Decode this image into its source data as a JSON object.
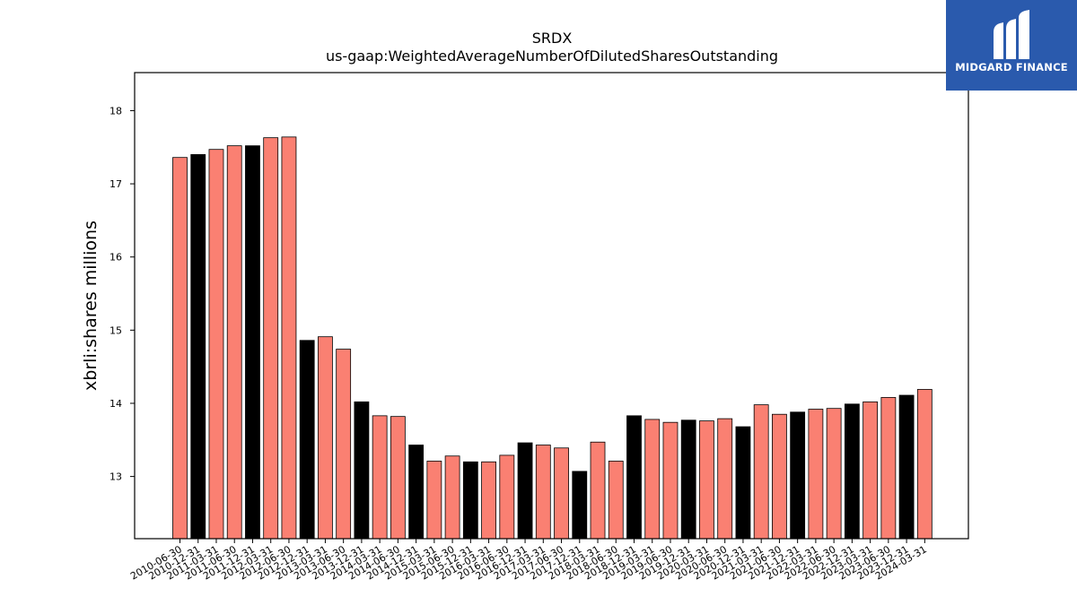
{
  "chart_data": {
    "type": "bar",
    "title": "SRDX",
    "subtitle": "us-gaap:WeightedAverageNumberOfDilutedSharesOutstanding",
    "xlabel": "",
    "ylabel": "xbrli:shares millions",
    "ylim": [
      12.15,
      18.52
    ],
    "yticks": [
      13,
      14,
      15,
      16,
      17,
      18
    ],
    "grid": false,
    "colors": {
      "annual": "#000000",
      "quarterly": "#fa8072",
      "edge": "#000000"
    },
    "categories": [
      "2010-06-30",
      "2010-12-31",
      "2011-03-31",
      "2011-06-30",
      "2011-12-31",
      "2012-03-31",
      "2012-06-30",
      "2012-12-31",
      "2013-03-31",
      "2013-06-30",
      "2013-12-31",
      "2014-03-31",
      "2014-06-30",
      "2014-12-31",
      "2015-03-31",
      "2015-06-30",
      "2015-12-31",
      "2016-03-31",
      "2016-06-30",
      "2016-12-31",
      "2017-03-31",
      "2017-06-30",
      "2017-12-31",
      "2018-03-31",
      "2018-06-30",
      "2018-12-31",
      "2019-03-31",
      "2019-06-30",
      "2019-12-31",
      "2020-03-31",
      "2020-06-30",
      "2020-12-31",
      "2021-03-31",
      "2021-06-30",
      "2021-12-31",
      "2022-03-31",
      "2022-06-30",
      "2022-12-31",
      "2023-03-31",
      "2023-06-30",
      "2023-12-31",
      "2024-03-31"
    ],
    "values": [
      17.36,
      17.4,
      17.47,
      17.52,
      17.52,
      17.63,
      17.64,
      14.86,
      14.91,
      14.74,
      14.02,
      13.83,
      13.82,
      13.43,
      13.21,
      13.28,
      13.2,
      13.2,
      13.29,
      13.46,
      13.43,
      13.39,
      13.07,
      13.47,
      13.21,
      13.83,
      13.78,
      13.74,
      13.77,
      13.76,
      13.79,
      13.68,
      13.98,
      13.85,
      13.88,
      13.92,
      13.93,
      13.99,
      14.02,
      14.08,
      14.11,
      14.19
    ],
    "bar_colors": [
      "salmon",
      "black",
      "salmon",
      "salmon",
      "black",
      "salmon",
      "salmon",
      "black",
      "salmon",
      "salmon",
      "black",
      "salmon",
      "salmon",
      "black",
      "salmon",
      "salmon",
      "black",
      "salmon",
      "salmon",
      "black",
      "salmon",
      "salmon",
      "black",
      "salmon",
      "salmon",
      "black",
      "salmon",
      "salmon",
      "black",
      "salmon",
      "salmon",
      "black",
      "salmon",
      "salmon",
      "black",
      "salmon",
      "salmon",
      "black",
      "salmon",
      "salmon",
      "black",
      "salmon"
    ]
  },
  "logo": {
    "text": "MIDGARD FINANCE",
    "background": "#2a5aad"
  }
}
